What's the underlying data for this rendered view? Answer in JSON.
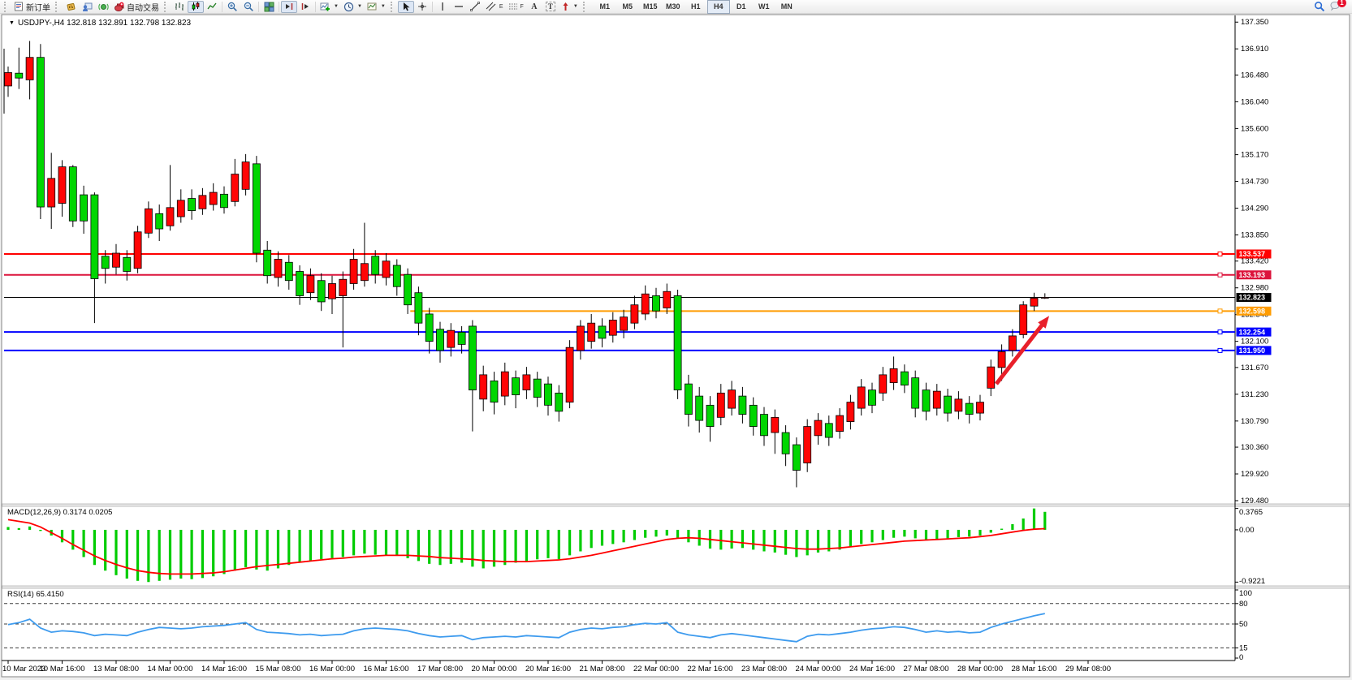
{
  "toolbar": {
    "new_order": "新订单",
    "autotrading": "自动交易",
    "channel_letter": "E",
    "fibo_letter": "F",
    "text_letter": "A",
    "label_letter": "T",
    "timeframes": [
      "M1",
      "M5",
      "M15",
      "M30",
      "H1",
      "H4",
      "D1",
      "W1",
      "MN"
    ],
    "active_timeframe": "H4",
    "notification_badge": "1"
  },
  "chart": {
    "title": "USDJPY-,H4  132.818 132.891 132.798 132.823"
  },
  "chart_data": {
    "type": "candlestick",
    "symbol": "USDJPY-",
    "period": "H4",
    "ohlc_current": [
      132.818,
      132.891,
      132.798,
      132.823
    ],
    "bull_color": "#ff0505",
    "bear_color": "#00d600",
    "price_axis": [
      "137.350",
      "136.910",
      "136.480",
      "136.040",
      "135.600",
      "135.170",
      "134.730",
      "134.290",
      "133.850",
      "133.420",
      "132.980",
      "132.540",
      "132.100",
      "131.670",
      "131.230",
      "130.790",
      "130.360",
      "129.920",
      "129.480"
    ],
    "time_axis": [
      "10 Mar 2023",
      "10 Mar 16:00",
      "13 Mar 08:00",
      "14 Mar 00:00",
      "14 Mar 16:00",
      "15 Mar 08:00",
      "16 Mar 00:00",
      "16 Mar 16:00",
      "17 Mar 08:00",
      "20 Mar 00:00",
      "20 Mar 16:00",
      "21 Mar 08:00",
      "22 Mar 00:00",
      "22 Mar 16:00",
      "23 Mar 08:00",
      "24 Mar 00:00",
      "24 Mar 16:00",
      "27 Mar 08:00",
      "28 Mar 00:00",
      "28 Mar 16:00",
      "29 Mar 08:00"
    ],
    "hlines": [
      {
        "value": 133.537,
        "label": "133.537",
        "color": "#ff0000",
        "width": 2,
        "selected": true
      },
      {
        "value": 133.193,
        "label": "133.193",
        "color": "#dc143c",
        "width": 2,
        "selected": true
      },
      {
        "value": 132.823,
        "label": "132.823",
        "color": "#000000",
        "width": 1,
        "selected": false,
        "current_price": true
      },
      {
        "value": 132.598,
        "label": "132.598",
        "color": "#ff9c00",
        "width": 2,
        "selected": true,
        "start_frac": 0.33
      },
      {
        "value": 132.254,
        "label": "132.254",
        "color": "#0000ff",
        "width": 2,
        "selected": true
      },
      {
        "value": 131.95,
        "label": "131.950",
        "color": "#0000ff",
        "width": 2,
        "selected": true
      }
    ],
    "candles": [
      [
        136.3,
        136.62,
        136.12,
        136.52
      ],
      [
        136.51,
        136.93,
        136.25,
        136.43
      ],
      [
        136.4,
        137.04,
        136.08,
        136.77
      ],
      [
        136.77,
        136.99,
        134.11,
        134.31
      ],
      [
        134.31,
        135.2,
        133.95,
        134.78
      ],
      [
        134.37,
        135.08,
        134.15,
        134.97
      ],
      [
        134.97,
        135.0,
        133.98,
        134.08
      ],
      [
        134.51,
        134.66,
        133.87,
        134.08
      ],
      [
        134.51,
        134.55,
        132.4,
        133.13
      ],
      [
        133.5,
        133.6,
        133.05,
        133.3
      ],
      [
        133.32,
        133.7,
        133.2,
        133.55
      ],
      [
        133.48,
        133.6,
        133.1,
        133.25
      ],
      [
        133.3,
        134.0,
        133.22,
        133.9
      ],
      [
        133.88,
        134.4,
        133.8,
        134.28
      ],
      [
        134.2,
        134.35,
        133.75,
        133.95
      ],
      [
        134.0,
        135.0,
        133.92,
        134.3
      ],
      [
        134.15,
        134.6,
        134.05,
        134.42
      ],
      [
        134.45,
        134.6,
        134.1,
        134.25
      ],
      [
        134.28,
        134.62,
        134.18,
        134.5
      ],
      [
        134.35,
        134.7,
        134.25,
        134.55
      ],
      [
        134.52,
        134.65,
        134.2,
        134.3
      ],
      [
        134.4,
        135.1,
        134.32,
        134.85
      ],
      [
        134.6,
        135.18,
        134.5,
        135.05
      ],
      [
        135.02,
        135.15,
        133.4,
        133.55
      ],
      [
        133.6,
        133.75,
        133.05,
        133.18
      ],
      [
        133.15,
        133.58,
        133.0,
        133.45
      ],
      [
        133.4,
        133.52,
        132.95,
        133.1
      ],
      [
        133.25,
        133.35,
        132.7,
        132.85
      ],
      [
        132.9,
        133.3,
        132.78,
        133.18
      ],
      [
        133.1,
        133.22,
        132.6,
        132.75
      ],
      [
        132.8,
        133.18,
        132.55,
        133.05
      ],
      [
        132.85,
        133.25,
        132.0,
        133.12
      ],
      [
        133.05,
        133.62,
        132.95,
        133.45
      ],
      [
        133.1,
        134.05,
        133.0,
        133.38
      ],
      [
        133.5,
        133.6,
        133.05,
        133.2
      ],
      [
        133.15,
        133.55,
        133.02,
        133.42
      ],
      [
        133.35,
        133.45,
        132.85,
        133.0
      ],
      [
        133.2,
        133.3,
        132.55,
        132.7
      ],
      [
        132.9,
        133.0,
        132.2,
        132.4
      ],
      [
        132.55,
        132.65,
        131.9,
        132.1
      ],
      [
        132.3,
        132.42,
        131.75,
        131.95
      ],
      [
        132.0,
        132.4,
        131.85,
        132.28
      ],
      [
        132.25,
        132.35,
        131.9,
        132.05
      ],
      [
        132.35,
        132.45,
        130.62,
        131.3
      ],
      [
        131.15,
        131.7,
        130.95,
        131.55
      ],
      [
        131.45,
        131.6,
        130.9,
        131.1
      ],
      [
        131.2,
        131.75,
        131.05,
        131.6
      ],
      [
        131.5,
        131.62,
        131.0,
        131.22
      ],
      [
        131.3,
        131.68,
        131.15,
        131.55
      ],
      [
        131.48,
        131.6,
        131.02,
        131.18
      ],
      [
        131.4,
        131.52,
        130.88,
        131.05
      ],
      [
        131.25,
        131.38,
        130.78,
        130.95
      ],
      [
        131.1,
        132.12,
        131.0,
        132.0
      ],
      [
        131.95,
        132.45,
        131.8,
        132.35
      ],
      [
        132.1,
        132.55,
        131.98,
        132.4
      ],
      [
        132.35,
        132.48,
        132.0,
        132.15
      ],
      [
        132.2,
        132.58,
        132.08,
        132.45
      ],
      [
        132.28,
        132.62,
        132.15,
        132.5
      ],
      [
        132.4,
        132.85,
        132.3,
        132.7
      ],
      [
        132.55,
        133.02,
        132.45,
        132.88
      ],
      [
        132.85,
        132.98,
        132.48,
        132.6
      ],
      [
        132.65,
        133.05,
        132.55,
        132.92
      ],
      [
        132.85,
        132.95,
        131.15,
        131.3
      ],
      [
        131.4,
        131.55,
        130.7,
        130.9
      ],
      [
        131.2,
        131.35,
        130.6,
        130.8
      ],
      [
        131.05,
        131.2,
        130.45,
        130.7
      ],
      [
        130.85,
        131.4,
        130.72,
        131.25
      ],
      [
        131.0,
        131.45,
        130.88,
        131.3
      ],
      [
        131.2,
        131.35,
        130.75,
        130.9
      ],
      [
        131.05,
        131.18,
        130.55,
        130.7
      ],
      [
        130.9,
        131.02,
        130.38,
        130.55
      ],
      [
        130.6,
        130.98,
        130.25,
        130.85
      ],
      [
        130.6,
        130.72,
        130.05,
        130.25
      ],
      [
        130.4,
        130.52,
        129.7,
        129.98
      ],
      [
        130.1,
        130.82,
        129.95,
        130.7
      ],
      [
        130.55,
        130.92,
        130.4,
        130.8
      ],
      [
        130.75,
        130.88,
        130.38,
        130.52
      ],
      [
        130.62,
        131.0,
        130.5,
        130.88
      ],
      [
        130.78,
        131.22,
        130.65,
        131.1
      ],
      [
        131.0,
        131.48,
        130.88,
        131.35
      ],
      [
        131.3,
        131.42,
        130.92,
        131.05
      ],
      [
        131.25,
        131.68,
        131.12,
        131.55
      ],
      [
        131.42,
        131.85,
        131.3,
        131.65
      ],
      [
        131.6,
        131.72,
        131.25,
        131.38
      ],
      [
        131.5,
        131.62,
        130.85,
        131.0
      ],
      [
        131.3,
        131.42,
        130.8,
        130.95
      ],
      [
        131.0,
        131.4,
        130.88,
        131.28
      ],
      [
        131.2,
        131.32,
        130.78,
        130.92
      ],
      [
        130.95,
        131.28,
        130.82,
        131.15
      ],
      [
        131.08,
        131.2,
        130.75,
        130.9
      ],
      [
        130.92,
        131.22,
        130.8,
        131.1
      ],
      [
        131.33,
        131.8,
        131.2,
        131.68
      ],
      [
        131.67,
        132.05,
        131.45,
        131.93
      ],
      [
        131.95,
        132.3,
        131.85,
        132.19
      ],
      [
        132.21,
        132.76,
        132.15,
        132.7
      ],
      [
        132.68,
        132.9,
        132.6,
        132.81
      ],
      [
        132.818,
        132.891,
        132.798,
        132.823
      ]
    ],
    "macd": {
      "label": "MACD(12,26,9) 0.3174 0.0205",
      "axis": [
        "0.3765",
        "0.00",
        "-0.9221"
      ],
      "hist_color": "#00cc00",
      "signal_color": "#ff0000",
      "hist": [
        0.05,
        0.03,
        0.06,
        -0.02,
        -0.1,
        -0.22,
        -0.35,
        -0.48,
        -0.62,
        -0.72,
        -0.8,
        -0.86,
        -0.9,
        -0.92,
        -0.9,
        -0.88,
        -0.86,
        -0.87,
        -0.85,
        -0.82,
        -0.78,
        -0.72,
        -0.66,
        -0.7,
        -0.72,
        -0.68,
        -0.62,
        -0.58,
        -0.55,
        -0.52,
        -0.5,
        -0.48,
        -0.45,
        -0.42,
        -0.44,
        -0.45,
        -0.46,
        -0.5,
        -0.55,
        -0.6,
        -0.62,
        -0.6,
        -0.58,
        -0.65,
        -0.68,
        -0.65,
        -0.62,
        -0.58,
        -0.55,
        -0.52,
        -0.5,
        -0.52,
        -0.45,
        -0.38,
        -0.32,
        -0.28,
        -0.25,
        -0.22,
        -0.18,
        -0.14,
        -0.12,
        -0.1,
        -0.15,
        -0.22,
        -0.28,
        -0.33,
        -0.35,
        -0.33,
        -0.32,
        -0.35,
        -0.38,
        -0.4,
        -0.44,
        -0.48,
        -0.45,
        -0.4,
        -0.38,
        -0.35,
        -0.3,
        -0.25,
        -0.22,
        -0.18,
        -0.14,
        -0.12,
        -0.15,
        -0.18,
        -0.16,
        -0.15,
        -0.13,
        -0.12,
        -0.1,
        -0.05,
        0.02,
        0.1,
        0.2,
        0.3765,
        0.3174
      ],
      "signal": [
        0.18,
        0.15,
        0.12,
        0.05,
        -0.05,
        -0.15,
        -0.26,
        -0.36,
        -0.46,
        -0.54,
        -0.61,
        -0.67,
        -0.72,
        -0.75,
        -0.77,
        -0.78,
        -0.78,
        -0.78,
        -0.77,
        -0.76,
        -0.74,
        -0.71,
        -0.68,
        -0.65,
        -0.63,
        -0.61,
        -0.59,
        -0.57,
        -0.55,
        -0.53,
        -0.51,
        -0.5,
        -0.48,
        -0.47,
        -0.46,
        -0.45,
        -0.45,
        -0.45,
        -0.46,
        -0.47,
        -0.49,
        -0.5,
        -0.51,
        -0.52,
        -0.54,
        -0.55,
        -0.56,
        -0.56,
        -0.56,
        -0.55,
        -0.54,
        -0.53,
        -0.51,
        -0.48,
        -0.45,
        -0.41,
        -0.37,
        -0.33,
        -0.29,
        -0.25,
        -0.21,
        -0.17,
        -0.15,
        -0.14,
        -0.15,
        -0.17,
        -0.19,
        -0.21,
        -0.23,
        -0.25,
        -0.27,
        -0.29,
        -0.31,
        -0.33,
        -0.34,
        -0.34,
        -0.33,
        -0.32,
        -0.3,
        -0.28,
        -0.26,
        -0.24,
        -0.22,
        -0.2,
        -0.19,
        -0.18,
        -0.17,
        -0.16,
        -0.15,
        -0.14,
        -0.12,
        -0.1,
        -0.07,
        -0.04,
        -0.01,
        0.01,
        0.0205
      ]
    },
    "rsi": {
      "label": "RSI(14) 65.4150",
      "axis": [
        "100",
        "80",
        "50",
        "15",
        "0"
      ],
      "levels": [
        80,
        50,
        15
      ],
      "color": "#3e9bee",
      "values": [
        49,
        52,
        57,
        44,
        38,
        40,
        39,
        37,
        33,
        35,
        34,
        33,
        38,
        42,
        45,
        44,
        43,
        44,
        46,
        47,
        48,
        50,
        52,
        42,
        38,
        37,
        36,
        34,
        35,
        33,
        34,
        35,
        40,
        43,
        44,
        43,
        42,
        40,
        36,
        33,
        31,
        32,
        33,
        27,
        30,
        31,
        32,
        31,
        33,
        32,
        31,
        30,
        38,
        42,
        44,
        43,
        45,
        46,
        49,
        51,
        50,
        52,
        38,
        34,
        32,
        30,
        34,
        36,
        34,
        32,
        30,
        28,
        26,
        24,
        32,
        35,
        34,
        36,
        38,
        41,
        43,
        44,
        46,
        45,
        42,
        38,
        40,
        38,
        39,
        37,
        38,
        45,
        50,
        54,
        58,
        62,
        65.415
      ]
    },
    "annotation_arrow": {
      "x1_bar": 91.5,
      "p1": 131.4,
      "x2_bar": 96.4,
      "p2": 132.52,
      "color": "#e8202a"
    }
  }
}
